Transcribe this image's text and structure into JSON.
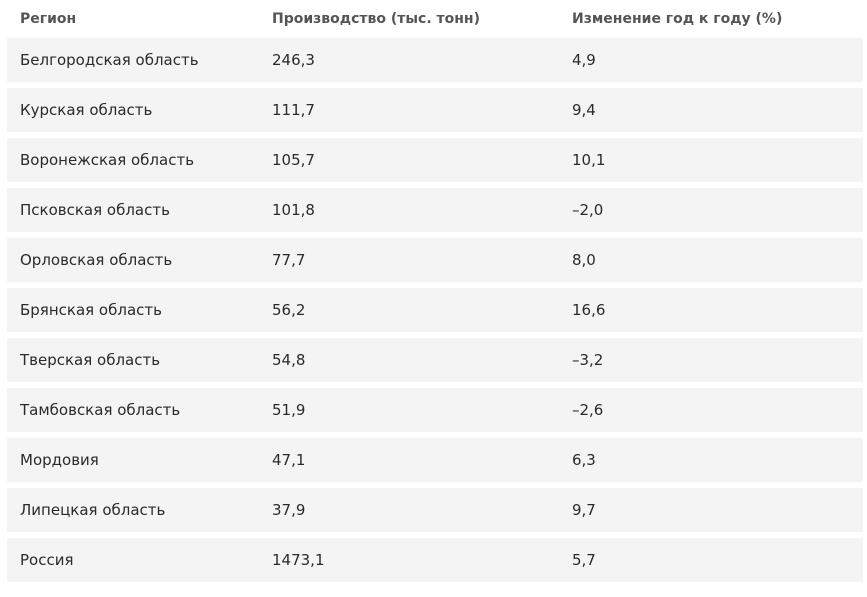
{
  "table": {
    "columns": [
      "Регион",
      "Производство (тыс. тонн)",
      "Изменение год к году (%)"
    ],
    "rows": [
      {
        "region": "Белгородская область",
        "production": "246,3",
        "change": "4,9"
      },
      {
        "region": "Курская область",
        "production": "111,7",
        "change": "9,4"
      },
      {
        "region": "Воронежская область",
        "production": "105,7",
        "change": "10,1"
      },
      {
        "region": "Псковская область",
        "production": "101,8",
        "change": "–2,0"
      },
      {
        "region": "Орловская область",
        "production": "77,7",
        "change": "8,0"
      },
      {
        "region": "Брянская область",
        "production": "56,2",
        "change": "16,6"
      },
      {
        "region": "Тверская область",
        "production": "54,8",
        "change": "–3,2"
      },
      {
        "region": "Тамбовская область",
        "production": "51,9",
        "change": "–2,6"
      },
      {
        "region": "Мордовия",
        "production": "47,1",
        "change": "6,3"
      },
      {
        "region": "Липецкая область",
        "production": "37,9",
        "change": "9,7"
      },
      {
        "region": "Россия",
        "production": "1473,1",
        "change": "5,7"
      }
    ]
  },
  "colors": {
    "row_background": "#f4f4f4",
    "header_text": "#555555",
    "cell_text": "#2a2a2a"
  }
}
